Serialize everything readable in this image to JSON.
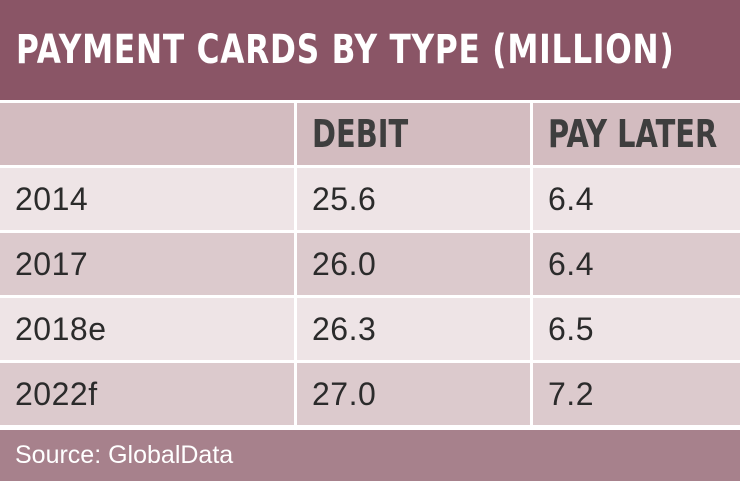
{
  "title": "PAYMENT CARDS BY TYPE (MILLION)",
  "source": "Source: GlobalData",
  "colors": {
    "title_bar": "#8a5566",
    "header_row": "#d3bcc0",
    "row_light": "#eee4e6",
    "row_dark": "#dccacd",
    "source_bar": "#a7818c"
  },
  "chart_data": {
    "type": "table",
    "title": "PAYMENT CARDS BY TYPE (MILLION)",
    "columns": [
      "",
      "DEBIT",
      "PAY LATER"
    ],
    "rows": [
      [
        "2014",
        "25.6",
        "6.4"
      ],
      [
        "2017",
        "26.0",
        "6.4"
      ],
      [
        "2018e",
        "26.3",
        "6.5"
      ],
      [
        "2022f",
        "27.0",
        "7.2"
      ]
    ],
    "series": [
      {
        "name": "DEBIT",
        "values": [
          25.6,
          26.0,
          26.3,
          27.0
        ]
      },
      {
        "name": "PAY LATER",
        "values": [
          6.4,
          6.4,
          6.5,
          7.2
        ]
      }
    ],
    "categories": [
      "2014",
      "2017",
      "2018e",
      "2022f"
    ]
  }
}
